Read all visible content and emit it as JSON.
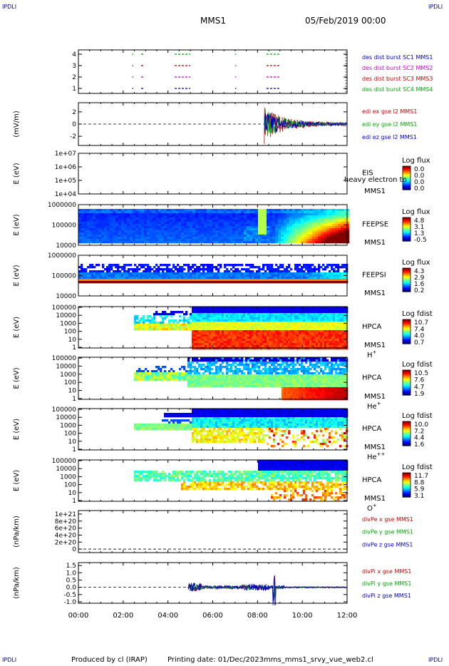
{
  "page": {
    "corner_label": "IPDLI",
    "mission": "MMS1",
    "date": "05/Feb/2019 00:00",
    "footer_produced": "Produced by cl (IRAP)",
    "footer_printed": "Printing date: 01/Dec/2023",
    "footer_file": "mms_mms1_srvy_vue_web2.cl"
  },
  "chart_data": [
    {
      "type": "line",
      "panel": "burst-availability",
      "ylabel": "",
      "y_ticks": [
        "4",
        "3",
        "2",
        "1"
      ],
      "ylim": [
        0.5,
        4.5
      ],
      "series": [
        {
          "name": "des dist burst SC1 MMS1",
          "color": "#0000cc",
          "level": 1,
          "segments_h": [
            [
              2.4,
              2.45
            ],
            [
              2.8,
              2.9
            ],
            [
              4.3,
              5.0
            ],
            [
              7.0,
              7.05
            ],
            [
              8.4,
              9.0
            ]
          ]
        },
        {
          "name": "des dist burst SC2 MMS2",
          "color": "#cc00cc",
          "level": 2,
          "segments_h": [
            [
              2.4,
              2.45
            ],
            [
              2.8,
              2.9
            ],
            [
              4.3,
              5.0
            ],
            [
              7.0,
              7.05
            ],
            [
              8.4,
              9.0
            ]
          ]
        },
        {
          "name": "des dist burst SC3 MMS3",
          "color": "#cc0000",
          "level": 3,
          "segments_h": [
            [
              2.4,
              2.45
            ],
            [
              2.8,
              2.9
            ],
            [
              4.3,
              5.0
            ],
            [
              7.0,
              7.05
            ],
            [
              8.4,
              9.0
            ]
          ]
        },
        {
          "name": "des dist burst SC4 MMS4",
          "color": "#00aa00",
          "level": 4,
          "segments_h": [
            [
              2.4,
              2.45
            ],
            [
              2.8,
              2.9
            ],
            [
              4.3,
              5.0
            ],
            [
              7.0,
              7.05
            ],
            [
              8.4,
              9.0
            ]
          ]
        }
      ]
    },
    {
      "type": "line",
      "panel": "edi-e-field",
      "ylabel": "(mV/m)",
      "y_ticks": [
        "2",
        "0",
        "-2"
      ],
      "ylim": [
        -3.5,
        3.5
      ],
      "series": [
        {
          "name": "edi ex gse l2 MMS1",
          "color": "#cc0000"
        },
        {
          "name": "edi ey gse l2 MMS1",
          "color": "#00aa00"
        },
        {
          "name": "edi ez gse l2 MMS1",
          "color": "#0000cc"
        }
      ],
      "active_interval_h": [
        8.3,
        12.0
      ],
      "peak_abs": 3.0
    },
    {
      "type": "heatmap",
      "panel": "eis",
      "ylabel": "E (eV)",
      "y_ticks": [
        "1e+07",
        "1e+06",
        "1e+05",
        "1e+04"
      ],
      "instrument": [
        "EIS",
        "MMS1"
      ],
      "overlay_text": "heavy electron to",
      "colorbar_title": "Log flux",
      "colorbar_ticks": [
        "0.0",
        "0.0",
        "0.0",
        "0.0"
      ],
      "empty": true
    },
    {
      "type": "heatmap",
      "panel": "feeps-e",
      "ylabel": "E (eV)",
      "y_ticks": [
        "1000000",
        "100000",
        "10000"
      ],
      "instrument": [
        "FEEPSE",
        "MMS1"
      ],
      "colorbar_title": "Log flux",
      "colorbar_ticks": [
        "4.8",
        "3.1",
        "1.3",
        "-0.5"
      ]
    },
    {
      "type": "heatmap",
      "panel": "feeps-i",
      "ylabel": "E (eV)",
      "y_ticks": [
        "1000000",
        "100000",
        "10000"
      ],
      "instrument": [
        "FEEPSI",
        "MMS1"
      ],
      "colorbar_title": "Log flux",
      "colorbar_ticks": [
        "4.3",
        "2.9",
        "1.6",
        "0.2"
      ]
    },
    {
      "type": "heatmap",
      "panel": "hpca-h",
      "ylabel": "E (eV)",
      "y_ticks": [
        "100000",
        "10000",
        "1000",
        "100",
        "10",
        "1"
      ],
      "instrument": [
        "HPCA",
        "MMS1"
      ],
      "species": "H",
      "species_charge": "+",
      "colorbar_title": "Log fdist",
      "colorbar_ticks": [
        "10.7",
        "7.4",
        "4.0",
        "0.7"
      ]
    },
    {
      "type": "heatmap",
      "panel": "hpca-he1",
      "ylabel": "E (eV)",
      "y_ticks": [
        "100000",
        "10000",
        "1000",
        "100",
        "10",
        "1"
      ],
      "instrument": [
        "HPCA",
        "MMS1"
      ],
      "species": "He",
      "species_charge": "+",
      "colorbar_title": "Log fdist",
      "colorbar_ticks": [
        "10.5",
        "7.6",
        "4.7",
        "1.9"
      ]
    },
    {
      "type": "heatmap",
      "panel": "hpca-he2",
      "ylabel": "E (eV)",
      "y_ticks": [
        "100000",
        "10000",
        "1000",
        "100",
        "10",
        "1"
      ],
      "instrument": [
        "HPCA",
        "MMS1"
      ],
      "species": "He",
      "species_charge": "++",
      "colorbar_title": "Log fdist",
      "colorbar_ticks": [
        "10.0",
        "7.2",
        "4.4",
        "1.6"
      ]
    },
    {
      "type": "heatmap",
      "panel": "hpca-o",
      "ylabel": "E (eV)",
      "y_ticks": [
        "100000",
        "10000",
        "1000",
        "100",
        "10",
        "1"
      ],
      "instrument": [
        "HPCA",
        "MMS1"
      ],
      "species": "O",
      "species_charge": "+",
      "colorbar_title": "Log fdist",
      "colorbar_ticks": [
        "11.7",
        "8.8",
        "5.9",
        "3.1"
      ]
    },
    {
      "type": "line",
      "panel": "div-pe",
      "ylabel": "(nPa/km)",
      "y_ticks": [
        "1e+21",
        "8e+20",
        "6e+20",
        "4e+20",
        "2e+20",
        "0"
      ],
      "ylim": [
        -1e+20,
        1.1e+21
      ],
      "series": [
        {
          "name": "divPe x gse MMS1",
          "color": "#cc0000"
        },
        {
          "name": "divPe y gse MMS1",
          "color": "#00aa00"
        },
        {
          "name": "divPe z gse MMS1",
          "color": "#0000cc"
        }
      ],
      "empty": true
    },
    {
      "type": "line",
      "panel": "div-pi",
      "ylabel": "(nPa/km)",
      "y_ticks": [
        "1.5",
        "1.0",
        "0.5",
        "0.0",
        "-0.5",
        "-1.0"
      ],
      "ylim": [
        -1.1,
        1.7
      ],
      "series": [
        {
          "name": "divPi x gse MMS1",
          "color": "#cc0000"
        },
        {
          "name": "divPi y gse MMS1",
          "color": "#00aa00"
        },
        {
          "name": "divPi z gse MMS1",
          "color": "#0000cc"
        }
      ],
      "active_interval_h": [
        4.9,
        12.0
      ],
      "spike_h": 8.75,
      "peak_abs": 1.5
    }
  ],
  "x_axis": {
    "ticks": [
      "00:00",
      "02:00",
      "04:00",
      "06:00",
      "08:00",
      "10:00",
      "12:00"
    ],
    "xlim_hours": [
      0,
      12
    ]
  }
}
